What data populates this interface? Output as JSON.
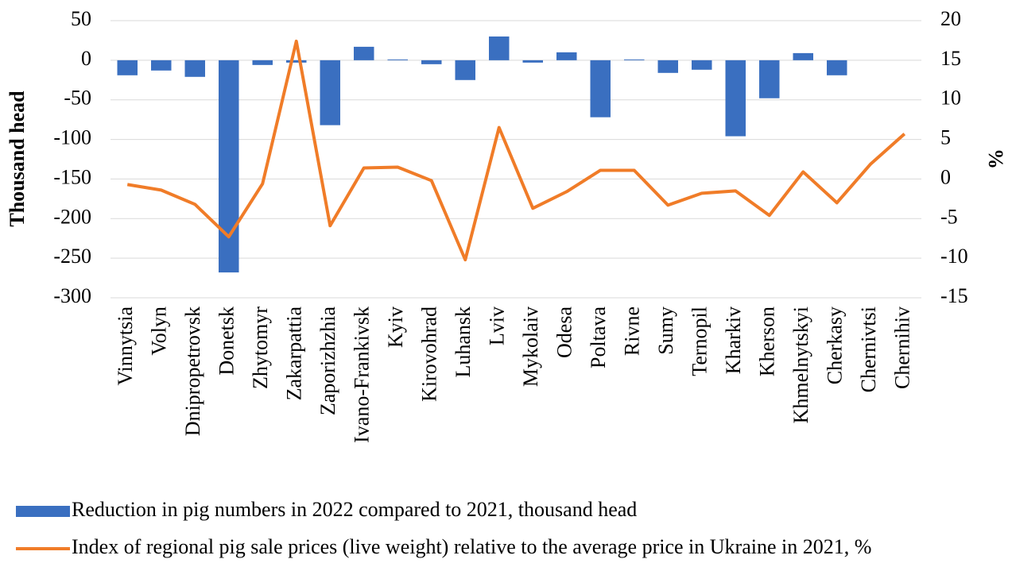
{
  "chart_data": {
    "type": "bar_line",
    "y_label": "Thousand head",
    "y2_label": "%",
    "categories": [
      "Vinnytsia",
      "Volyn",
      "Dnipropetrovsk",
      "Donetsk",
      "Zhytomyr",
      "Zakarpattia",
      "Zaporizhzhia",
      "Ivano-Frankivsk",
      "Kyiv",
      "Kirovohrad",
      "Luhansk",
      "Lviv",
      "Mykolaiv",
      "Odesa",
      "Poltava",
      "Rivne",
      "Sumy",
      "Ternopil",
      "Kharkiv",
      "Kherson",
      "Khmelnytskyi",
      "Cherkasy",
      "Chernivtsi",
      "Chernihiv"
    ],
    "series": [
      {
        "name": "Reduction in pig numbers in 2022 compared to 2021, thousand head",
        "type": "bar",
        "color": "#3a6fc0",
        "values": [
          -19,
          -13,
          -21,
          -268,
          -6,
          -3,
          -82,
          17,
          1,
          -5,
          -25,
          30,
          -3,
          10,
          -72,
          1,
          -16,
          -12,
          -96,
          -48,
          9,
          -19,
          0,
          0
        ]
      },
      {
        "name": "Index of regional pig sale prices (live weight) relative to the average price in Ukraine in 2021, %",
        "type": "line",
        "axis": "y2",
        "color": "#f07c28",
        "values": [
          -0.7,
          -1.4,
          -3.2,
          -7.3,
          -0.6,
          17.4,
          -5.9,
          1.4,
          1.5,
          -0.2,
          -10.2,
          6.5,
          -3.7,
          -1.6,
          1.1,
          1.1,
          -3.3,
          -1.8,
          -1.5,
          -4.6,
          0.9,
          -3.0,
          1.9,
          5.7
        ]
      }
    ],
    "ylim": [
      -300,
      50
    ],
    "yticks": [
      50,
      0,
      -50,
      -100,
      -150,
      -200,
      -250,
      -300
    ],
    "y2lim": [
      -15,
      20
    ],
    "y2ticks": [
      20,
      15,
      10,
      5,
      0,
      -5,
      -10,
      -15
    ],
    "grid": true,
    "legend": "bottom"
  }
}
